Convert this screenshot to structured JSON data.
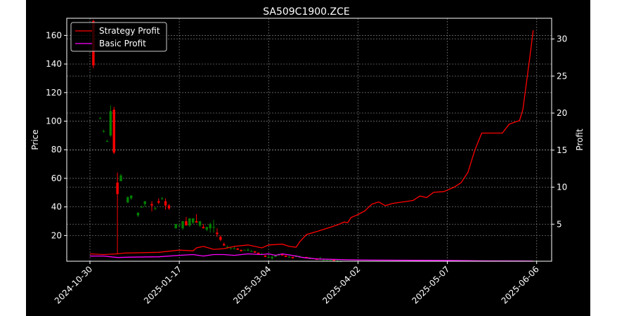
{
  "chart_data": {
    "type": "candlestick+line",
    "title": "SA509C1900.ZCE",
    "ylabel_left": "Price",
    "ylabel_right": "Profit",
    "xlabel": "",
    "x_tick_labels": [
      "2024-10-30",
      "2025-01-17",
      "2025-03-04",
      "2025-04-02",
      "2025-05-07",
      "2025-06-06"
    ],
    "y_left_ticks": [
      20,
      40,
      60,
      80,
      100,
      120,
      140,
      160
    ],
    "y_right_ticks": [
      5,
      10,
      15,
      20,
      25,
      30
    ],
    "ylim_left": [
      2,
      172
    ],
    "ylim_right": [
      0,
      32.8
    ],
    "grid": true,
    "legend_position": "top-left",
    "colors": {
      "up": "#008000",
      "down": "#ff0000",
      "strategy_line": "#ff0000",
      "basic_line": "#ff00ff",
      "background": "#000000",
      "grid": "#888888",
      "text": "#ffffff"
    },
    "series": [
      {
        "name": "Strategy Profit",
        "axis": "right",
        "color": "#ff0000",
        "points": [
          [
            0,
            1.0
          ],
          [
            4,
            0.9
          ],
          [
            8,
            1.0
          ],
          [
            10,
            1.1
          ],
          [
            20,
            1.2
          ],
          [
            26,
            1.5
          ],
          [
            30,
            1.4
          ],
          [
            31,
            1.8
          ],
          [
            33,
            2.0
          ],
          [
            36,
            1.6
          ],
          [
            39,
            1.7
          ],
          [
            42,
            2.0
          ],
          [
            46,
            2.2
          ],
          [
            50,
            1.8
          ],
          [
            52,
            2.2
          ],
          [
            56,
            2.3
          ],
          [
            58,
            2.0
          ],
          [
            60,
            1.9
          ],
          [
            61,
            2.6
          ],
          [
            63,
            3.6
          ],
          [
            66,
            4.0
          ],
          [
            68,
            4.3
          ],
          [
            70,
            4.6
          ],
          [
            72,
            4.9
          ],
          [
            74,
            5.3
          ],
          [
            75,
            5.2
          ],
          [
            76,
            5.9
          ],
          [
            78,
            6.3
          ],
          [
            80,
            6.8
          ],
          [
            82,
            7.7
          ],
          [
            84,
            8.0
          ],
          [
            86,
            7.5
          ],
          [
            88,
            7.8
          ],
          [
            91,
            8.0
          ],
          [
            94,
            8.2
          ],
          [
            96,
            8.8
          ],
          [
            98,
            8.6
          ],
          [
            100,
            9.3
          ],
          [
            103,
            9.4
          ],
          [
            106,
            10.0
          ],
          [
            108,
            10.6
          ],
          [
            110,
            12.0
          ],
          [
            112,
            15.0
          ],
          [
            114,
            17.3
          ],
          [
            117,
            17.3
          ],
          [
            120,
            17.3
          ],
          [
            122,
            18.5
          ],
          [
            125,
            19.0
          ],
          [
            126,
            20.5
          ],
          [
            127,
            24.0
          ],
          [
            128,
            27.5
          ],
          [
            129,
            31.2
          ]
        ]
      },
      {
        "name": "Basic Profit",
        "axis": "right",
        "color": "#ff00ff",
        "points": [
          [
            0,
            0.7
          ],
          [
            4,
            0.7
          ],
          [
            8,
            0.5
          ],
          [
            12,
            0.55
          ],
          [
            20,
            0.6
          ],
          [
            26,
            0.8
          ],
          [
            30,
            0.9
          ],
          [
            33,
            0.7
          ],
          [
            36,
            0.9
          ],
          [
            39,
            0.9
          ],
          [
            42,
            0.8
          ],
          [
            46,
            1.0
          ],
          [
            50,
            0.9
          ],
          [
            52,
            1.0
          ],
          [
            54,
            0.8
          ],
          [
            56,
            1.0
          ],
          [
            58,
            0.85
          ],
          [
            60,
            0.7
          ],
          [
            62,
            0.5
          ],
          [
            66,
            0.3
          ],
          [
            75,
            0.2
          ],
          [
            82,
            0.15
          ],
          [
            95,
            0.12
          ],
          [
            105,
            0.1
          ],
          [
            115,
            0.05
          ],
          [
            125,
            0.03
          ],
          [
            129,
            0.02
          ]
        ]
      }
    ],
    "candles": [
      [
        1,
        170,
        171,
        137,
        139
      ],
      [
        3,
        102,
        103,
        102,
        102
      ],
      [
        4,
        93,
        94,
        92,
        93
      ],
      [
        5,
        86,
        87,
        86,
        86
      ],
      [
        6,
        90,
        111,
        89,
        107
      ],
      [
        7,
        108,
        110,
        77,
        78
      ],
      [
        8,
        57,
        64,
        7,
        49
      ],
      [
        9,
        58,
        63,
        58,
        62
      ],
      [
        11,
        43,
        47,
        43,
        47
      ],
      [
        12,
        46,
        48,
        45,
        48
      ],
      [
        14,
        34,
        36,
        33,
        36
      ],
      [
        15,
        40,
        41,
        40,
        40
      ],
      [
        16,
        42,
        44,
        40,
        44
      ],
      [
        18,
        42,
        44,
        37,
        41
      ],
      [
        19,
        39,
        40,
        38,
        39
      ],
      [
        20,
        44,
        46,
        42,
        43
      ],
      [
        21,
        46,
        47,
        45,
        46
      ],
      [
        22,
        44,
        46,
        38,
        41
      ],
      [
        23,
        41,
        42,
        38,
        39
      ],
      [
        25,
        25,
        28,
        25,
        28
      ],
      [
        26,
        27,
        28,
        27,
        27
      ],
      [
        27,
        25,
        30,
        24,
        30
      ],
      [
        28,
        30,
        33,
        27,
        27
      ],
      [
        29,
        27,
        32,
        26,
        32
      ],
      [
        30,
        29,
        32,
        28,
        32
      ],
      [
        31,
        30,
        35,
        29,
        29
      ],
      [
        32,
        27,
        30,
        26,
        30
      ],
      [
        33,
        26,
        28,
        25,
        25
      ],
      [
        34,
        24,
        26,
        23,
        26
      ],
      [
        35,
        25,
        29,
        22,
        28
      ],
      [
        36,
        26,
        31,
        22,
        26
      ],
      [
        37,
        22,
        25,
        19,
        21
      ],
      [
        38,
        19,
        20,
        16,
        17
      ],
      [
        39,
        14,
        15,
        13,
        13
      ],
      [
        40,
        12,
        13,
        12,
        12
      ],
      [
        41,
        11,
        12,
        11,
        11
      ],
      [
        42,
        11,
        12,
        11,
        11
      ],
      [
        43,
        11,
        11,
        10,
        10
      ],
      [
        44,
        10,
        10,
        9,
        9
      ],
      [
        45,
        10,
        10,
        10,
        10
      ],
      [
        46,
        10,
        11,
        9,
        10
      ],
      [
        47,
        9,
        10,
        9,
        9
      ],
      [
        48,
        9,
        9,
        8,
        8
      ],
      [
        49,
        8,
        8,
        7,
        7
      ],
      [
        50,
        7,
        8,
        7,
        7
      ],
      [
        51,
        6,
        6,
        5,
        5
      ],
      [
        52,
        5,
        6,
        5,
        5
      ],
      [
        53,
        4,
        6,
        3,
        5
      ],
      [
        54,
        5,
        6,
        5,
        6
      ],
      [
        55,
        6,
        7,
        6,
        7
      ],
      [
        56,
        7,
        7,
        6,
        6
      ],
      [
        57,
        6,
        6,
        5,
        5
      ],
      [
        58,
        5,
        6,
        5,
        5
      ],
      [
        59,
        5,
        5,
        4,
        4
      ],
      [
        60,
        5,
        6,
        5,
        6
      ],
      [
        61,
        5,
        6,
        5,
        5
      ],
      [
        62,
        5,
        5,
        5,
        5
      ],
      [
        63,
        5,
        5,
        4,
        4
      ],
      [
        64,
        4,
        5,
        4,
        4
      ],
      [
        65,
        4,
        4,
        4,
        4
      ],
      [
        66,
        4,
        4,
        3,
        3
      ],
      [
        67,
        4,
        5,
        3,
        4
      ],
      [
        68,
        3,
        4,
        3,
        3
      ],
      [
        69,
        3,
        3,
        3,
        3
      ],
      [
        70,
        3,
        3,
        3,
        3
      ],
      [
        71,
        3,
        3,
        2,
        2
      ],
      [
        72,
        2,
        3,
        2,
        2
      ],
      [
        73,
        2,
        2,
        2,
        2
      ]
    ]
  }
}
